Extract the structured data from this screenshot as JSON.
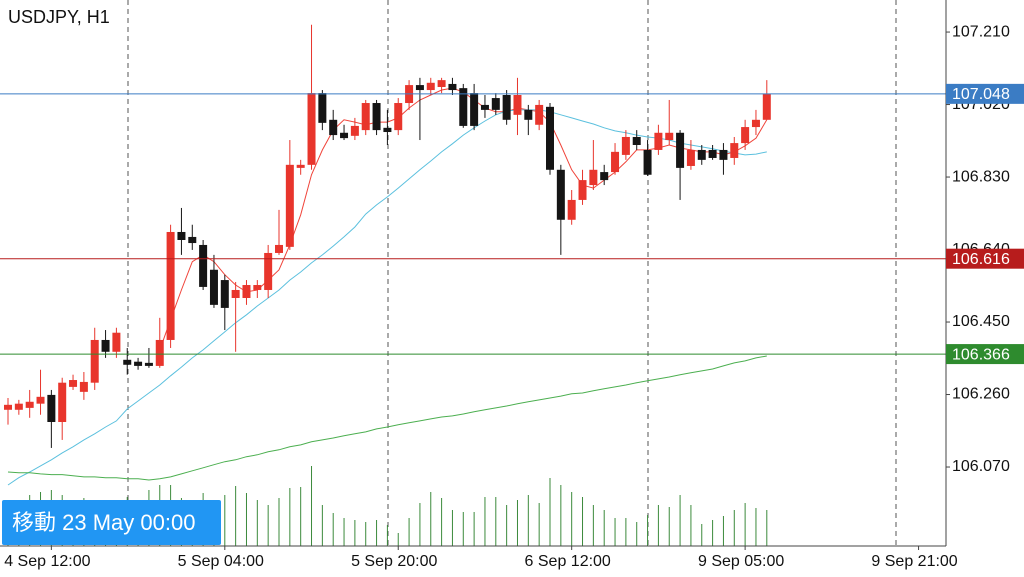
{
  "chart_data": {
    "type": "candlestick",
    "title": "USDJPY, H1",
    "badge": "移動 23 May 00:00",
    "categories": [
      null,
      null,
      null,
      null,
      "4 Sep 12:00",
      null,
      null,
      null,
      null,
      null,
      null,
      null,
      null,
      null,
      null,
      null,
      null,
      null,
      null,
      null,
      "5 Sep 04:00",
      null,
      null,
      null,
      null,
      null,
      null,
      null,
      null,
      null,
      null,
      null,
      null,
      null,
      null,
      null,
      "5 Sep 20:00",
      null,
      null,
      null,
      null,
      null,
      null,
      null,
      null,
      null,
      null,
      null,
      null,
      null,
      null,
      null,
      "6 Sep 12:00",
      null,
      null,
      null,
      null,
      null,
      null,
      null,
      null,
      null,
      null,
      null,
      null,
      null,
      null,
      null,
      "9 Sep 05:00",
      null,
      null,
      null,
      null,
      null,
      null,
      null,
      null,
      null,
      null,
      null,
      null,
      null,
      null,
      null,
      "9 Sep 21:00",
      null,
      null
    ],
    "open": [
      106.22,
      106.22,
      106.225,
      106.236,
      106.259,
      106.188,
      106.28,
      106.267,
      106.291,
      106.403,
      106.372,
      106.351,
      106.346,
      106.343,
      106.335,
      106.403,
      106.686,
      106.673,
      106.652,
      106.587,
      106.56,
      106.513,
      106.513,
      106.534,
      106.534,
      106.631,
      106.647,
      106.854,
      106.862,
      107.05,
      106.98,
      106.946,
      106.938,
      106.953,
      107.024,
      106.959,
      106.953,
      107.024,
      107.071,
      107.058,
      107.066,
      107.074,
      107.063,
      107.05,
      107.019,
      107.037,
      107.045,
      106.993,
      107.006,
      106.967,
      107.014,
      106.849,
      106.718,
      106.77,
      106.809,
      106.843,
      106.843,
      106.888,
      106.935,
      106.901,
      106.901,
      106.927,
      106.946,
      106.859,
      106.901,
      106.901,
      106.901,
      106.88,
      106.919,
      106.961,
      106.98,
      null,
      null,
      null,
      null,
      null,
      null,
      null,
      null,
      null,
      null,
      null,
      null,
      null,
      null,
      null,
      null
    ],
    "high": [
      106.251,
      106.246,
      106.272,
      106.325,
      106.272,
      106.304,
      106.312,
      106.319,
      106.435,
      106.429,
      106.435,
      106.382,
      106.356,
      106.382,
      106.461,
      106.705,
      106.749,
      106.705,
      106.665,
      106.626,
      106.574,
      106.555,
      106.56,
      106.56,
      106.652,
      106.744,
      106.927,
      106.875,
      107.229,
      107.058,
      107.006,
      106.967,
      106.985,
      107.032,
      107.032,
      107.006,
      107.037,
      107.084,
      107.09,
      107.09,
      107.09,
      107.09,
      107.074,
      107.074,
      107.045,
      107.05,
      107.058,
      107.09,
      107.019,
      107.032,
      107.024,
      106.862,
      106.796,
      106.849,
      106.927,
      106.862,
      106.919,
      106.953,
      106.953,
      106.927,
      106.967,
      107.032,
      106.953,
      106.927,
      106.914,
      106.914,
      106.919,
      106.935,
      106.98,
      107.006,
      107.084,
      null,
      null,
      null,
      null,
      null,
      null,
      null,
      null,
      null,
      null,
      null,
      null,
      null,
      null,
      null,
      null
    ],
    "low": [
      106.181,
      106.207,
      106.199,
      106.207,
      106.12,
      106.141,
      106.272,
      106.246,
      106.272,
      106.356,
      106.356,
      106.312,
      106.325,
      106.33,
      106.33,
      106.382,
      106.626,
      106.639,
      106.534,
      106.487,
      106.429,
      106.372,
      106.495,
      106.513,
      106.513,
      106.626,
      106.639,
      106.836,
      106.849,
      106.953,
      106.927,
      106.927,
      106.927,
      106.94,
      106.94,
      106.914,
      106.94,
      107.006,
      106.927,
      107.045,
      107.05,
      107.045,
      106.959,
      106.953,
      106.985,
      106.993,
      106.967,
      106.94,
      106.94,
      106.953,
      106.836,
      106.626,
      106.705,
      106.757,
      106.796,
      106.809,
      106.836,
      106.875,
      106.901,
      106.833,
      106.888,
      106.914,
      106.77,
      106.849,
      106.862,
      106.875,
      106.836,
      106.862,
      106.901,
      106.94,
      106.98,
      null,
      null,
      null,
      null,
      null,
      null,
      null,
      null,
      null,
      null,
      null,
      null,
      null,
      null,
      null,
      null
    ],
    "close": [
      106.233,
      106.236,
      106.241,
      106.254,
      106.188,
      106.291,
      106.298,
      106.293,
      106.403,
      106.372,
      106.422,
      106.338,
      106.335,
      106.335,
      106.403,
      106.686,
      106.665,
      106.657,
      106.542,
      106.495,
      106.487,
      106.534,
      106.547,
      106.547,
      106.631,
      106.652,
      106.862,
      106.862,
      107.05,
      106.972,
      106.94,
      106.932,
      106.964,
      107.024,
      106.953,
      106.948,
      107.024,
      107.071,
      107.058,
      107.077,
      107.084,
      107.058,
      106.964,
      106.964,
      107.006,
      107.006,
      106.98,
      107.045,
      106.98,
      107.019,
      106.849,
      106.718,
      106.77,
      106.822,
      106.849,
      106.822,
      106.896,
      106.935,
      106.914,
      106.836,
      106.946,
      106.946,
      106.854,
      106.901,
      106.875,
      106.88,
      106.875,
      106.919,
      106.961,
      106.98,
      107.048,
      null,
      null,
      null,
      null,
      null,
      null,
      null,
      null,
      null,
      null,
      null,
      null,
      null,
      null,
      null,
      null
    ],
    "up_color": "#e8352c",
    "down_color": "#151515",
    "ylim": [
      105.863,
      107.294
    ],
    "yticks": [
      {
        "value": 107.21,
        "label": "107.210"
      },
      {
        "value": 107.02,
        "label": "107.020"
      },
      {
        "value": 106.83,
        "label": "106.830"
      },
      {
        "value": 106.64,
        "label": "106.640"
      },
      {
        "value": 106.45,
        "label": "106.450"
      },
      {
        "value": 106.26,
        "label": "106.260"
      },
      {
        "value": 106.07,
        "label": "106.070"
      }
    ],
    "grid": true,
    "lines": [
      {
        "value": 107.048,
        "color": "#3b7cc4"
      },
      {
        "value": 106.616,
        "color": "#b71c1c"
      },
      {
        "value": 106.366,
        "color": "#2e8b2e"
      }
    ],
    "moving_averages": [
      {
        "color": "#f0443a",
        "values": [
          null,
          null,
          null,
          null,
          null,
          null,
          null,
          null,
          null,
          null,
          null,
          null,
          null,
          null,
          106.377,
          106.456,
          106.534,
          106.608,
          106.626,
          106.608,
          106.574,
          106.547,
          106.529,
          106.534,
          106.56,
          106.587,
          106.652,
          106.731,
          106.836,
          106.901,
          106.953,
          106.98,
          106.974,
          106.967,
          106.974,
          106.974,
          106.985,
          107.011,
          107.032,
          107.045,
          107.058,
          107.063,
          107.053,
          107.032,
          107.011,
          107.001,
          107.001,
          107.011,
          107.006,
          107.001,
          106.974,
          106.914,
          106.849,
          106.809,
          106.801,
          106.822,
          106.843,
          106.87,
          106.901,
          106.901,
          106.906,
          106.914,
          106.906,
          106.901,
          106.896,
          106.896,
          106.888,
          106.896,
          106.912,
          106.932,
          106.98,
          null,
          null,
          null,
          null,
          null,
          null,
          null,
          null,
          null,
          null,
          null,
          null,
          null,
          null,
          null,
          null
        ]
      },
      {
        "color": "#5bc0de",
        "values": [
          106.023,
          106.042,
          106.057,
          106.073,
          106.089,
          106.107,
          106.123,
          106.141,
          106.157,
          106.175,
          106.191,
          106.222,
          106.243,
          106.264,
          106.285,
          106.309,
          106.332,
          106.356,
          106.377,
          106.401,
          106.424,
          106.448,
          106.469,
          106.492,
          106.513,
          106.534,
          106.56,
          106.581,
          106.605,
          106.626,
          106.649,
          106.673,
          106.699,
          106.733,
          106.757,
          106.778,
          106.801,
          106.825,
          106.849,
          106.872,
          106.896,
          106.917,
          106.94,
          106.959,
          106.977,
          106.993,
          107.003,
          107.006,
          107.006,
          107.006,
          107.001,
          106.993,
          106.985,
          106.977,
          106.969,
          106.959,
          106.951,
          106.946,
          106.94,
          106.935,
          106.932,
          106.927,
          106.919,
          106.914,
          106.909,
          106.904,
          106.898,
          106.893,
          106.888,
          106.89,
          106.896,
          null,
          null,
          null,
          null,
          null,
          null,
          null,
          null,
          null,
          null,
          null,
          null,
          null,
          null,
          null,
          null
        ]
      },
      {
        "color": "#4caf50",
        "values": [
          106.057,
          106.055,
          106.055,
          106.052,
          106.05,
          106.05,
          106.047,
          106.044,
          106.044,
          106.042,
          106.042,
          106.039,
          106.039,
          106.036,
          106.039,
          106.044,
          106.052,
          106.06,
          106.068,
          106.076,
          106.084,
          106.089,
          106.097,
          106.102,
          106.11,
          106.115,
          106.123,
          106.128,
          106.136,
          106.141,
          106.146,
          106.152,
          106.157,
          106.162,
          106.17,
          106.175,
          106.181,
          106.186,
          106.191,
          106.196,
          106.201,
          106.204,
          106.209,
          106.215,
          106.22,
          106.225,
          106.23,
          106.236,
          106.241,
          106.246,
          106.251,
          106.256,
          106.262,
          106.264,
          106.27,
          106.275,
          106.28,
          106.285,
          106.291,
          106.296,
          106.301,
          106.306,
          106.312,
          106.317,
          106.322,
          106.327,
          106.335,
          106.343,
          106.348,
          106.356,
          106.361,
          null,
          null,
          null,
          null,
          null,
          null,
          null,
          null,
          null,
          null,
          null,
          null,
          null,
          null,
          null,
          null
        ]
      }
    ],
    "volume": {
      "color": "#3b8a3b",
      "ylim": [
        0,
        180
      ],
      "values": [
        46,
        41,
        51,
        54,
        56,
        51,
        46,
        48,
        44,
        41,
        46,
        49,
        41,
        56,
        61,
        61,
        48,
        43,
        53,
        38,
        51,
        60,
        53,
        46,
        41,
        48,
        58,
        59,
        80,
        41,
        33,
        28,
        26,
        24,
        26,
        21,
        13,
        28,
        43,
        54,
        48,
        36,
        34,
        34,
        49,
        49,
        41,
        46,
        51,
        43,
        68,
        61,
        54,
        49,
        41,
        36,
        28,
        28,
        24,
        31,
        41,
        39,
        51,
        41,
        22,
        26,
        30,
        36,
        43,
        38,
        36,
        null,
        null,
        null,
        null,
        null,
        null,
        null,
        null,
        null,
        null,
        null,
        null,
        null,
        null,
        null,
        null
      ]
    }
  }
}
